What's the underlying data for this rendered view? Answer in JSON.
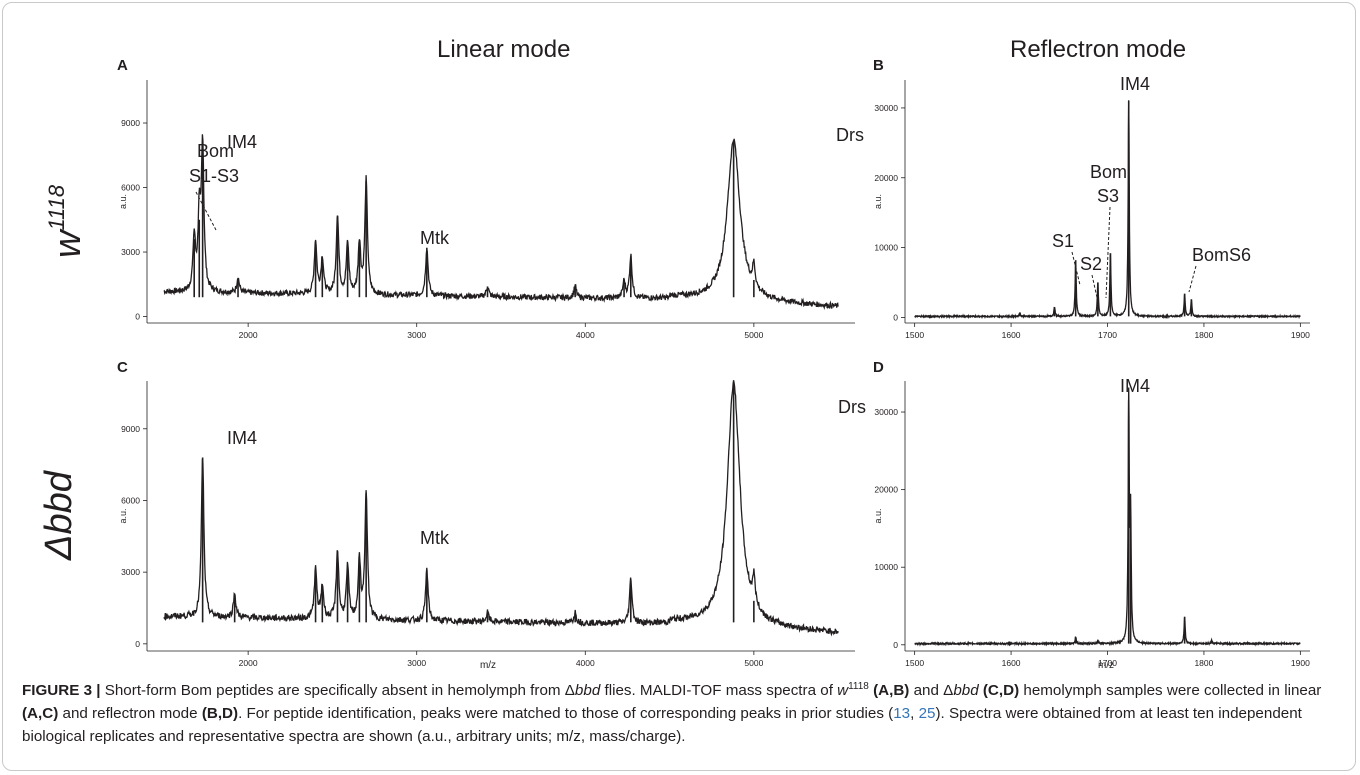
{
  "figure": {
    "mode_titles": {
      "linear": "Linear mode",
      "reflectron": "Reflectron mode"
    },
    "row_labels": {
      "row1": "w",
      "row1_sup": "1118",
      "row2": "Δbbd"
    },
    "caption": {
      "label": "FIGURE 3 |",
      "t1": " Short-form Bom peptides are specifically absent in hemolymph from Δ",
      "t1_it": "bbd",
      "t2": " flies. MALDI-TOF mass spectra of ",
      "t2_it": "w",
      "t2_sup": "1118",
      "t3_b": " (A,B)",
      "t4": " and Δ",
      "t4_it": "bbd",
      "t5_b": " (C,D)",
      "t6": " hemolymph samples were collected in linear ",
      "t6_b": "(A,C)",
      "t7": " and reflectron mode ",
      "t7_b": "(B,D)",
      "t8": ". For peptide identification, peaks were matched to those of corresponding peaks in prior studies (",
      "ref1": "13",
      "t9": ", ",
      "ref2": "25",
      "t10": "). Spectra were obtained from at least ten independent biological replicates and representative spectra are shown (a.u., arbitrary units; m/z, mass/charge)."
    }
  },
  "chart_data": [
    {
      "panel": "A",
      "type": "line",
      "title": "",
      "xlabel": "",
      "ylabel": "a.u.",
      "xlim": [
        1400,
        5600
      ],
      "ylim": [
        -300,
        11000
      ],
      "xticks": [
        2000,
        3000,
        4000,
        5000
      ],
      "yticks": [
        0,
        3000,
        6000,
        9000
      ],
      "series": [
        {
          "peaks": [
            {
              "x": 1680,
              "y": 3600
            },
            {
              "x": 1710,
              "y": 4500
            },
            {
              "x": 1730,
              "y": 7900
            },
            {
              "x": 1940,
              "y": 1800
            },
            {
              "x": 2400,
              "y": 3500
            },
            {
              "x": 2440,
              "y": 2700
            },
            {
              "x": 2530,
              "y": 4700
            },
            {
              "x": 2590,
              "y": 3400
            },
            {
              "x": 2660,
              "y": 3400
            },
            {
              "x": 2700,
              "y": 6300
            },
            {
              "x": 3060,
              "y": 3200
            },
            {
              "x": 3420,
              "y": 1400
            },
            {
              "x": 3940,
              "y": 1400
            },
            {
              "x": 4230,
              "y": 1600
            },
            {
              "x": 4270,
              "y": 2800
            },
            {
              "x": 4880,
              "y": 8200
            },
            {
              "x": 5000,
              "y": 1700
            }
          ]
        }
      ],
      "annotations": [
        "Bom",
        "S1-S3",
        "IM4",
        "Mtk",
        "Drs"
      ]
    },
    {
      "panel": "B",
      "type": "line",
      "title": "",
      "xlabel": "",
      "ylabel": "a.u.",
      "xlim": [
        1490,
        1910
      ],
      "ylim": [
        -800,
        34000
      ],
      "xticks": [
        1500,
        1600,
        1700,
        1800,
        1900
      ],
      "yticks": [
        0,
        10000,
        20000,
        30000
      ],
      "series": [
        {
          "peaks": [
            {
              "x": 1609,
              "y": 700
            },
            {
              "x": 1645,
              "y": 1500
            },
            {
              "x": 1667,
              "y": 8200
            },
            {
              "x": 1690,
              "y": 5000
            },
            {
              "x": 1703,
              "y": 9200
            },
            {
              "x": 1722,
              "y": 31000
            },
            {
              "x": 1780,
              "y": 3400
            },
            {
              "x": 1787,
              "y": 2600
            }
          ]
        }
      ],
      "annotations": [
        "IM4",
        "Bom",
        "S3",
        "S1",
        "S2",
        "BomS6"
      ]
    },
    {
      "panel": "C",
      "type": "line",
      "title": "",
      "xlabel": "m/z",
      "ylabel": "a.u.",
      "xlim": [
        1400,
        5600
      ],
      "ylim": [
        -300,
        11000
      ],
      "xticks": [
        2000,
        3000,
        4000,
        5000
      ],
      "yticks": [
        0,
        3000,
        6000,
        9000
      ],
      "series": [
        {
          "peaks": [
            {
              "x": 1730,
              "y": 7800
            },
            {
              "x": 1920,
              "y": 2100
            },
            {
              "x": 2400,
              "y": 3100
            },
            {
              "x": 2440,
              "y": 2400
            },
            {
              "x": 2530,
              "y": 3900
            },
            {
              "x": 2590,
              "y": 3200
            },
            {
              "x": 2660,
              "y": 3400
            },
            {
              "x": 2700,
              "y": 6300
            },
            {
              "x": 3060,
              "y": 3100
            },
            {
              "x": 3420,
              "y": 1300
            },
            {
              "x": 3940,
              "y": 1300
            },
            {
              "x": 4270,
              "y": 2700
            },
            {
              "x": 4880,
              "y": 10900
            },
            {
              "x": 5000,
              "y": 1800
            }
          ]
        }
      ],
      "annotations": [
        "IM4",
        "Mtk",
        "Drs"
      ]
    },
    {
      "panel": "D",
      "type": "line",
      "title": "",
      "xlabel": "m/z",
      "ylabel": "a.u.",
      "xlim": [
        1490,
        1910
      ],
      "ylim": [
        -800,
        34000
      ],
      "xticks": [
        1500,
        1600,
        1700,
        1800,
        1900
      ],
      "yticks": [
        0,
        10000,
        20000,
        30000
      ],
      "series": [
        {
          "peaks": [
            {
              "x": 1667,
              "y": 1000
            },
            {
              "x": 1690,
              "y": 600
            },
            {
              "x": 1722,
              "y": 31500
            },
            {
              "x": 1724,
              "y": 16000
            },
            {
              "x": 1780,
              "y": 3600
            },
            {
              "x": 1808,
              "y": 600
            }
          ]
        }
      ],
      "annotations": [
        "IM4"
      ]
    }
  ],
  "panel_letters": [
    "A",
    "B",
    "C",
    "D"
  ],
  "colors": {
    "trace": "#231f20",
    "axis": "#231f20",
    "ref": "#3575b8",
    "frame": "#c9c9c9"
  }
}
